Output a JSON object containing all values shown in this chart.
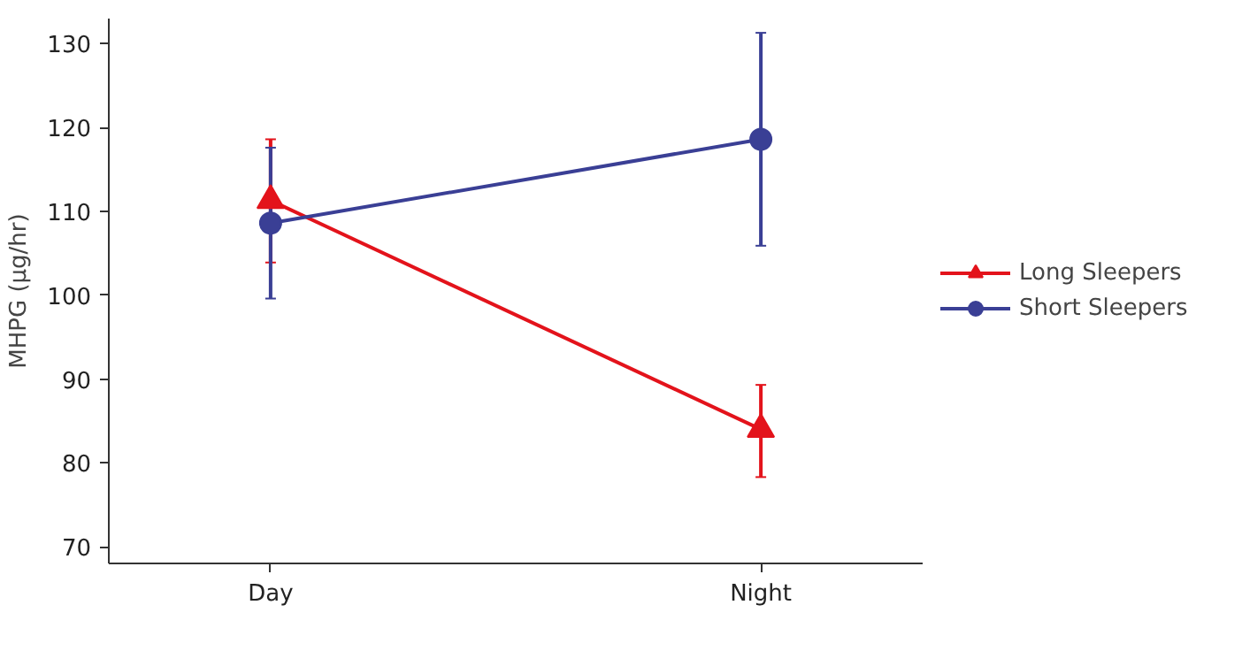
{
  "chart_data": {
    "type": "line",
    "ylabel": "MHPG (µg/hr)",
    "categories": [
      "Day",
      "Night"
    ],
    "ylim": [
      68,
      133
    ],
    "yticks": [
      70,
      80,
      90,
      100,
      110,
      120,
      130
    ],
    "grid": false,
    "legend": "right",
    "series": [
      {
        "name": "Long Sleepers",
        "color": "#e3131b",
        "marker": "triangle",
        "values": [
          111.3,
          84.0
        ],
        "errors": [
          [
            103.9,
            118.6
          ],
          [
            78.3,
            89.3
          ]
        ]
      },
      {
        "name": "Short Sleepers",
        "color": "#3a3f95",
        "marker": "circle",
        "values": [
          108.6,
          118.6
        ],
        "errors": [
          [
            99.6,
            117.6
          ],
          [
            105.9,
            131.3
          ]
        ]
      }
    ]
  }
}
